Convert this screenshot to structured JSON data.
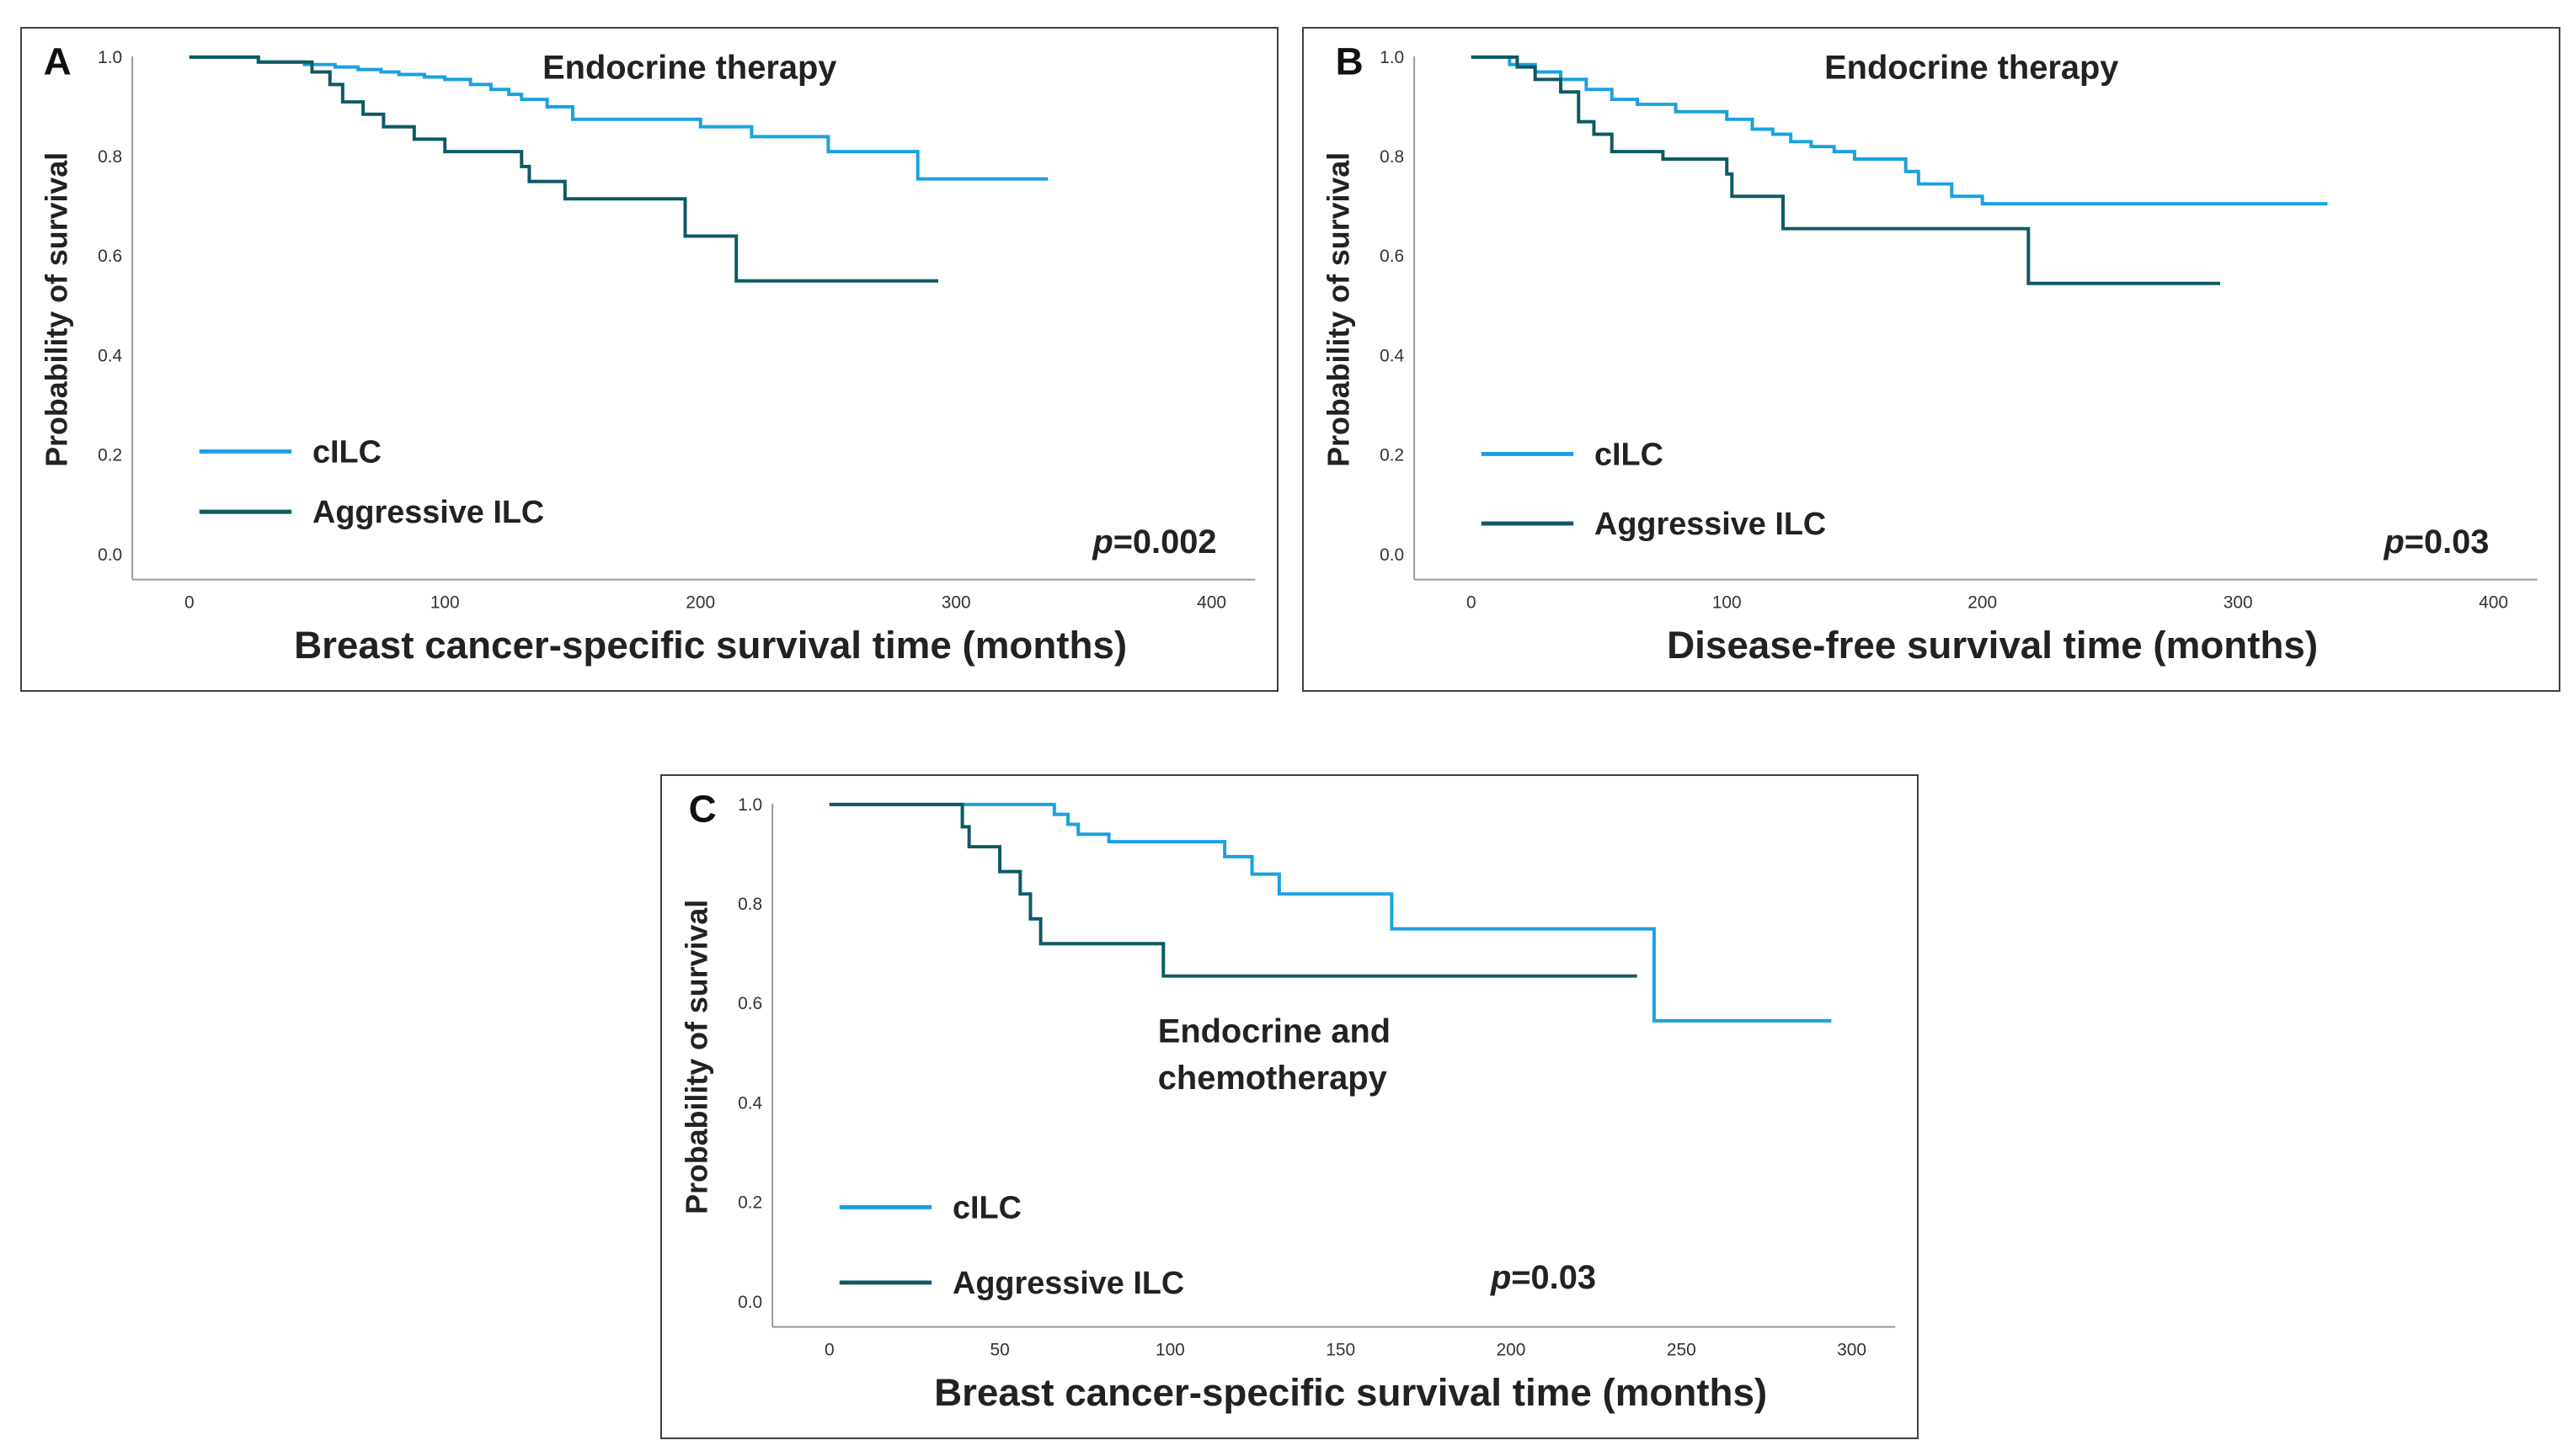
{
  "colors": {
    "cilc": "#1aa1e0",
    "aggressive": "#0e5a63",
    "axis": "#9a9a9a",
    "frame": "#404040"
  },
  "chart_data": [
    {
      "type": "line",
      "panel": "A",
      "title": "Endocrine therapy",
      "xlabel": "Breast cancer-specific survival time (months)",
      "ylabel": "Probability of survival",
      "xlim": [
        0,
        400
      ],
      "ylim": [
        0,
        1
      ],
      "xticks": [
        "0",
        "100",
        "200",
        "300",
        "400"
      ],
      "yticks": [
        "0.0",
        "0.2",
        "0.4",
        "0.6",
        "0.8",
        "1.0"
      ],
      "pvalue_prefix": "p",
      "pvalue_rest": "=0.002",
      "legend_position": "bottom-left",
      "series": [
        {
          "name": "cILC",
          "key": "cilc",
          "x": [
            0,
            27,
            45,
            57,
            66,
            75,
            82,
            92,
            100,
            110,
            118,
            125,
            130,
            140,
            150,
            200,
            220,
            250,
            285,
            336
          ],
          "y": [
            1.0,
            0.99,
            0.985,
            0.98,
            0.975,
            0.97,
            0.965,
            0.96,
            0.955,
            0.945,
            0.935,
            0.925,
            0.915,
            0.9,
            0.875,
            0.86,
            0.84,
            0.81,
            0.755,
            0.755
          ]
        },
        {
          "name": "Aggressive ILC",
          "key": "aggressive",
          "x": [
            0,
            27,
            48,
            55,
            60,
            68,
            76,
            88,
            100,
            130,
            133,
            147,
            194,
            214,
            293
          ],
          "y": [
            1.0,
            0.99,
            0.97,
            0.945,
            0.91,
            0.885,
            0.86,
            0.835,
            0.81,
            0.78,
            0.75,
            0.715,
            0.64,
            0.55,
            0.55
          ]
        }
      ]
    },
    {
      "type": "line",
      "panel": "B",
      "title": "Endocrine therapy",
      "xlabel": "Disease-free survival time (months)",
      "ylabel": "Probability of survival",
      "xlim": [
        0,
        400
      ],
      "ylim": [
        0,
        1
      ],
      "xticks": [
        "0",
        "100",
        "200",
        "300",
        "400"
      ],
      "yticks": [
        "0.0",
        "0.2",
        "0.4",
        "0.6",
        "0.8",
        "1.0"
      ],
      "pvalue_prefix": "p",
      "pvalue_rest": "=0.03",
      "legend_position": "bottom-left",
      "series": [
        {
          "name": "cILC",
          "key": "cilc",
          "x": [
            0,
            15,
            25,
            35,
            45,
            55,
            65,
            80,
            100,
            110,
            118,
            125,
            133,
            142,
            150,
            170,
            175,
            188,
            200,
            335
          ],
          "y": [
            1.0,
            0.985,
            0.97,
            0.955,
            0.935,
            0.915,
            0.905,
            0.89,
            0.875,
            0.855,
            0.845,
            0.83,
            0.82,
            0.81,
            0.795,
            0.77,
            0.745,
            0.72,
            0.705,
            0.705
          ]
        },
        {
          "name": "Aggressive ILC",
          "key": "aggressive",
          "x": [
            0,
            18,
            25,
            35,
            42,
            48,
            55,
            75,
            100,
            102,
            122,
            218,
            293
          ],
          "y": [
            1.0,
            0.98,
            0.955,
            0.93,
            0.87,
            0.845,
            0.81,
            0.795,
            0.765,
            0.72,
            0.655,
            0.545,
            0.545
          ]
        }
      ]
    },
    {
      "type": "line",
      "panel": "C",
      "title_lines": [
        "Endocrine and",
        "chemotherapy"
      ],
      "xlabel": "Breast cancer-specific survival time (months)",
      "ylabel": "Probability of survival",
      "xlim": [
        0,
        300
      ],
      "ylim": [
        0,
        1
      ],
      "xticks": [
        "0",
        "50",
        "100",
        "150",
        "200",
        "250",
        "300"
      ],
      "yticks": [
        "0.0",
        "0.2",
        "0.4",
        "0.6",
        "0.8",
        "1.0"
      ],
      "pvalue_prefix": "p",
      "pvalue_rest": "=0.03",
      "legend_position": "bottom-left",
      "series": [
        {
          "name": "cILC",
          "key": "cilc",
          "x": [
            0,
            66,
            70,
            73,
            82,
            116,
            124,
            132,
            165,
            242,
            294
          ],
          "y": [
            1.0,
            0.98,
            0.96,
            0.94,
            0.925,
            0.895,
            0.86,
            0.82,
            0.75,
            0.565,
            0.565
          ]
        },
        {
          "name": "Aggressive ILC",
          "key": "aggressive",
          "x": [
            0,
            39,
            41,
            50,
            56,
            59,
            62,
            98,
            237
          ],
          "y": [
            1.0,
            0.955,
            0.915,
            0.865,
            0.82,
            0.77,
            0.72,
            0.655,
            0.655
          ]
        }
      ]
    }
  ]
}
